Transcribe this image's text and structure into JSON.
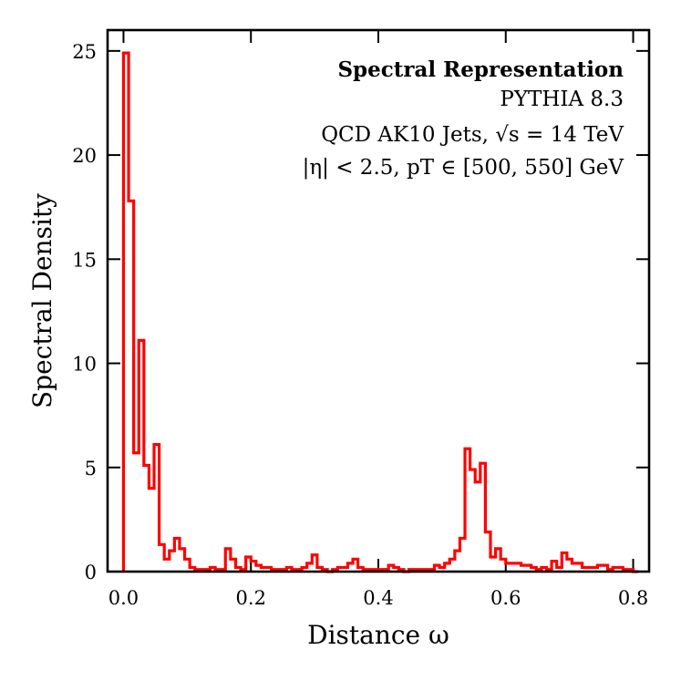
{
  "chart_data": {
    "type": "histogram-step",
    "title": "",
    "xlabel": "Distance ω",
    "ylabel": "Spectral Density",
    "xlim": [
      -0.025,
      0.825
    ],
    "ylim": [
      0,
      26
    ],
    "xticks": [
      0.0,
      0.2,
      0.4,
      0.6,
      0.8
    ],
    "xtick_labels": [
      "0.0",
      "0.2",
      "0.4",
      "0.6",
      "0.8"
    ],
    "yticks": [
      0,
      5,
      10,
      15,
      20,
      25
    ],
    "ytick_labels": [
      "0",
      "5",
      "10",
      "15",
      "20",
      "25"
    ],
    "bin_width": 0.008,
    "bin_start": 0.0,
    "series": [
      {
        "name": "Spectral Density",
        "color": "#ff0000",
        "values": [
          24.9,
          17.8,
          5.7,
          11.1,
          5.1,
          4.0,
          6.1,
          1.3,
          0.6,
          1.0,
          1.6,
          1.1,
          0.6,
          0.2,
          0.1,
          0.1,
          0.1,
          0.2,
          0.1,
          0.1,
          1.1,
          0.6,
          0.2,
          0.1,
          0.7,
          0.5,
          0.3,
          0.2,
          0.2,
          0.1,
          0.1,
          0.1,
          0.2,
          0.1,
          0.1,
          0.2,
          0.4,
          0.8,
          0.2,
          0.1,
          0.0,
          0.1,
          0.2,
          0.2,
          0.4,
          0.6,
          0.2,
          0.1,
          0.1,
          0.1,
          0.1,
          0.1,
          0.3,
          0.2,
          0.1,
          0.0,
          0.1,
          0.1,
          0.1,
          0.1,
          0.1,
          0.3,
          0.2,
          0.4,
          0.6,
          1.0,
          1.6,
          5.9,
          4.9,
          4.3,
          5.2,
          1.9,
          0.7,
          1.1,
          0.6,
          0.4,
          0.4,
          0.4,
          0.3,
          0.3,
          0.2,
          0.1,
          0.2,
          0.1,
          0.5,
          0.2,
          0.9,
          0.6,
          0.4,
          0.4,
          0.2,
          0.2,
          0.2,
          0.3,
          0.3,
          0.1,
          0.2,
          0.2,
          0.1,
          0.1,
          0.0
        ]
      }
    ],
    "annotations": {
      "title": "Spectral Representation",
      "generator": "PYTHIA 8.3",
      "sample": "QCD AK10 Jets, √s = 14 TeV",
      "cuts": "|η| < 2.5, pT ∈ [500, 550] GeV"
    }
  }
}
